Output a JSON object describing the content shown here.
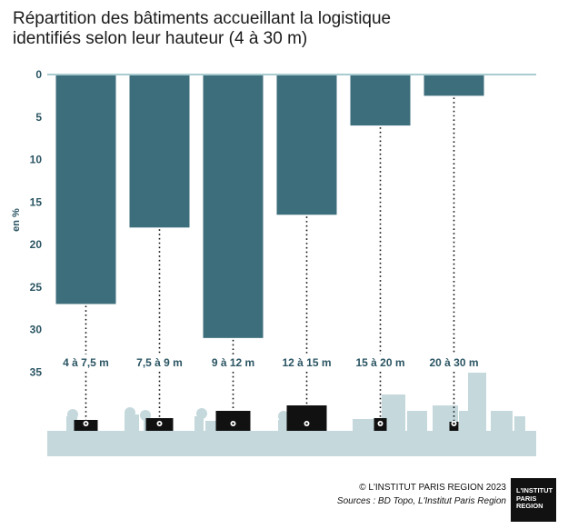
{
  "title_lines": [
    "Répartition des bâtiments accueillant la logistique",
    "identifiés selon leur hauteur (4 à 30 m)"
  ],
  "colors": {
    "bar": "#3d6e7c",
    "axis_line": "#a8ccd0",
    "tick_text": "#2b5563",
    "skyline": "#c5d9dd",
    "building": "#111111"
  },
  "chart_data": {
    "type": "bar",
    "categories": [
      "4 à 7,5 m",
      "7,5 à 9 m",
      "9 à 12 m",
      "12 à 15 m",
      "15 à 20 m",
      "20 à 30 m"
    ],
    "values": [
      27,
      18,
      31,
      16.5,
      6,
      2.5
    ],
    "ylabel": "en %",
    "yticks": [
      0,
      5,
      10,
      15,
      20,
      25,
      30,
      35
    ],
    "ylim": [
      0,
      35
    ],
    "orientation": "bars hang downward from 0"
  },
  "footer": {
    "credit": "© L'INSTITUT PARIS REGION 2023",
    "source": "Sources : BD Topo, L'Institut Paris Region"
  },
  "logo": [
    "L'INSTITUT",
    "PARIS",
    "REGION"
  ]
}
